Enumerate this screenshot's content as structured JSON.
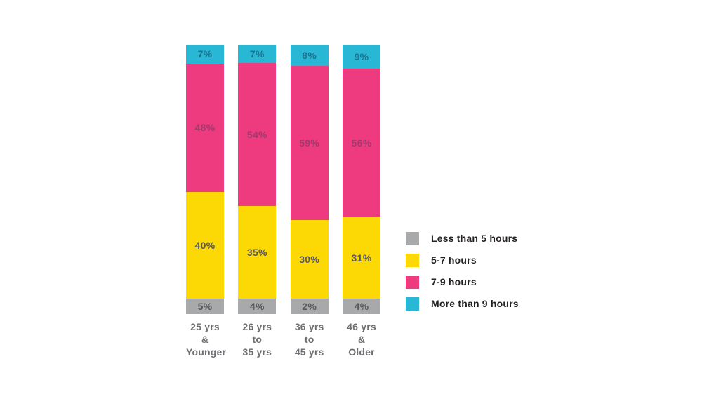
{
  "chart_data": {
    "type": "bar",
    "subtype": "stacked-percentage-column",
    "title": "",
    "xlabel": "",
    "ylabel": "",
    "grid": false,
    "legend_position": "right",
    "value_suffix": "%",
    "background_color": "#ffffff",
    "axis_label_color": "#6d6e71",
    "legend_text_color": "#231f20",
    "categories": [
      "25 yrs &\nYounger",
      "26 yrs to\n35 yrs",
      "36 yrs to\n45 yrs",
      "46 yrs &\nOlder"
    ],
    "stack_order_top_to_bottom": [
      "More than 9 hours",
      "7-9 hours",
      "5-7 hours",
      "Less than 5 hours"
    ],
    "series": [
      {
        "name": "Less than 5 hours",
        "values": [
          5,
          4,
          2,
          4
        ],
        "color": "#a8a9ab",
        "label_color": "#58595b"
      },
      {
        "name": "5-7 hours",
        "values": [
          40,
          35,
          30,
          31
        ],
        "color": "#fcd905",
        "label_color": "#58595b"
      },
      {
        "name": "7-9 hours",
        "values": [
          48,
          54,
          59,
          56
        ],
        "color": "#ee3a7e",
        "label_color": "#a03a6d"
      },
      {
        "name": "More than 9 hours",
        "values": [
          7,
          7,
          8,
          9
        ],
        "color": "#28b8d6",
        "label_color": "#20708e"
      }
    ]
  }
}
